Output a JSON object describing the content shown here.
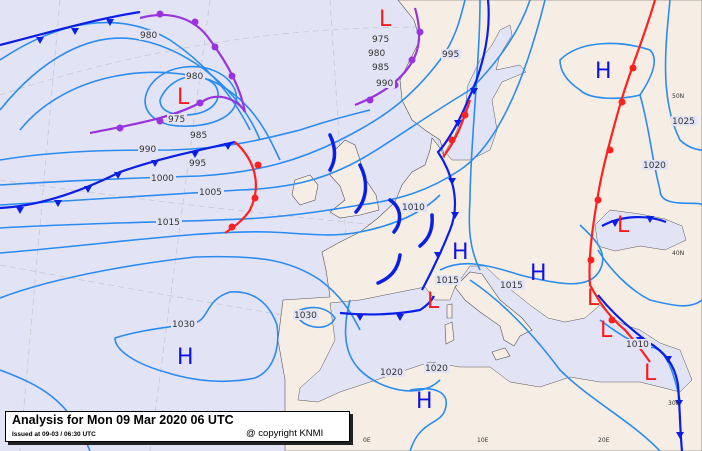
{
  "caption": {
    "title": "Analysis for Mon 09 Mar 2020 06 UTC",
    "issued": "Issued at 09-03 / 06:30 UTC",
    "copyright": "@ copyright KNMI"
  },
  "grid_labels": [
    "50N",
    "40N",
    "30N",
    "0E",
    "10E",
    "20E"
  ],
  "isobar_labels": [
    "980",
    "980",
    "975",
    "985",
    "990",
    "995",
    "1000",
    "1005",
    "1015",
    "975",
    "980",
    "985",
    "990",
    "995",
    "1010",
    "1015",
    "1015",
    "1025",
    "1020",
    "1030",
    "1030",
    "1020",
    "1020",
    "1010"
  ],
  "pressure_centers": [
    {
      "type": "L"
    },
    {
      "type": "L"
    },
    {
      "type": "H"
    },
    {
      "type": "L"
    },
    {
      "type": "H"
    },
    {
      "type": "H"
    },
    {
      "type": "L"
    },
    {
      "type": "L"
    },
    {
      "type": "L"
    },
    {
      "type": "L"
    },
    {
      "type": "H"
    },
    {
      "type": "H"
    }
  ],
  "colors": {
    "sea": "#e3e3f6",
    "land": "#f6eee4",
    "isobar": "#2a8cf0",
    "cold_front": "#0a1ee6",
    "warm_front": "#ff2020",
    "occluded_front": "#9933dd",
    "high": "#1010e0",
    "low": "#ff1a1a"
  }
}
